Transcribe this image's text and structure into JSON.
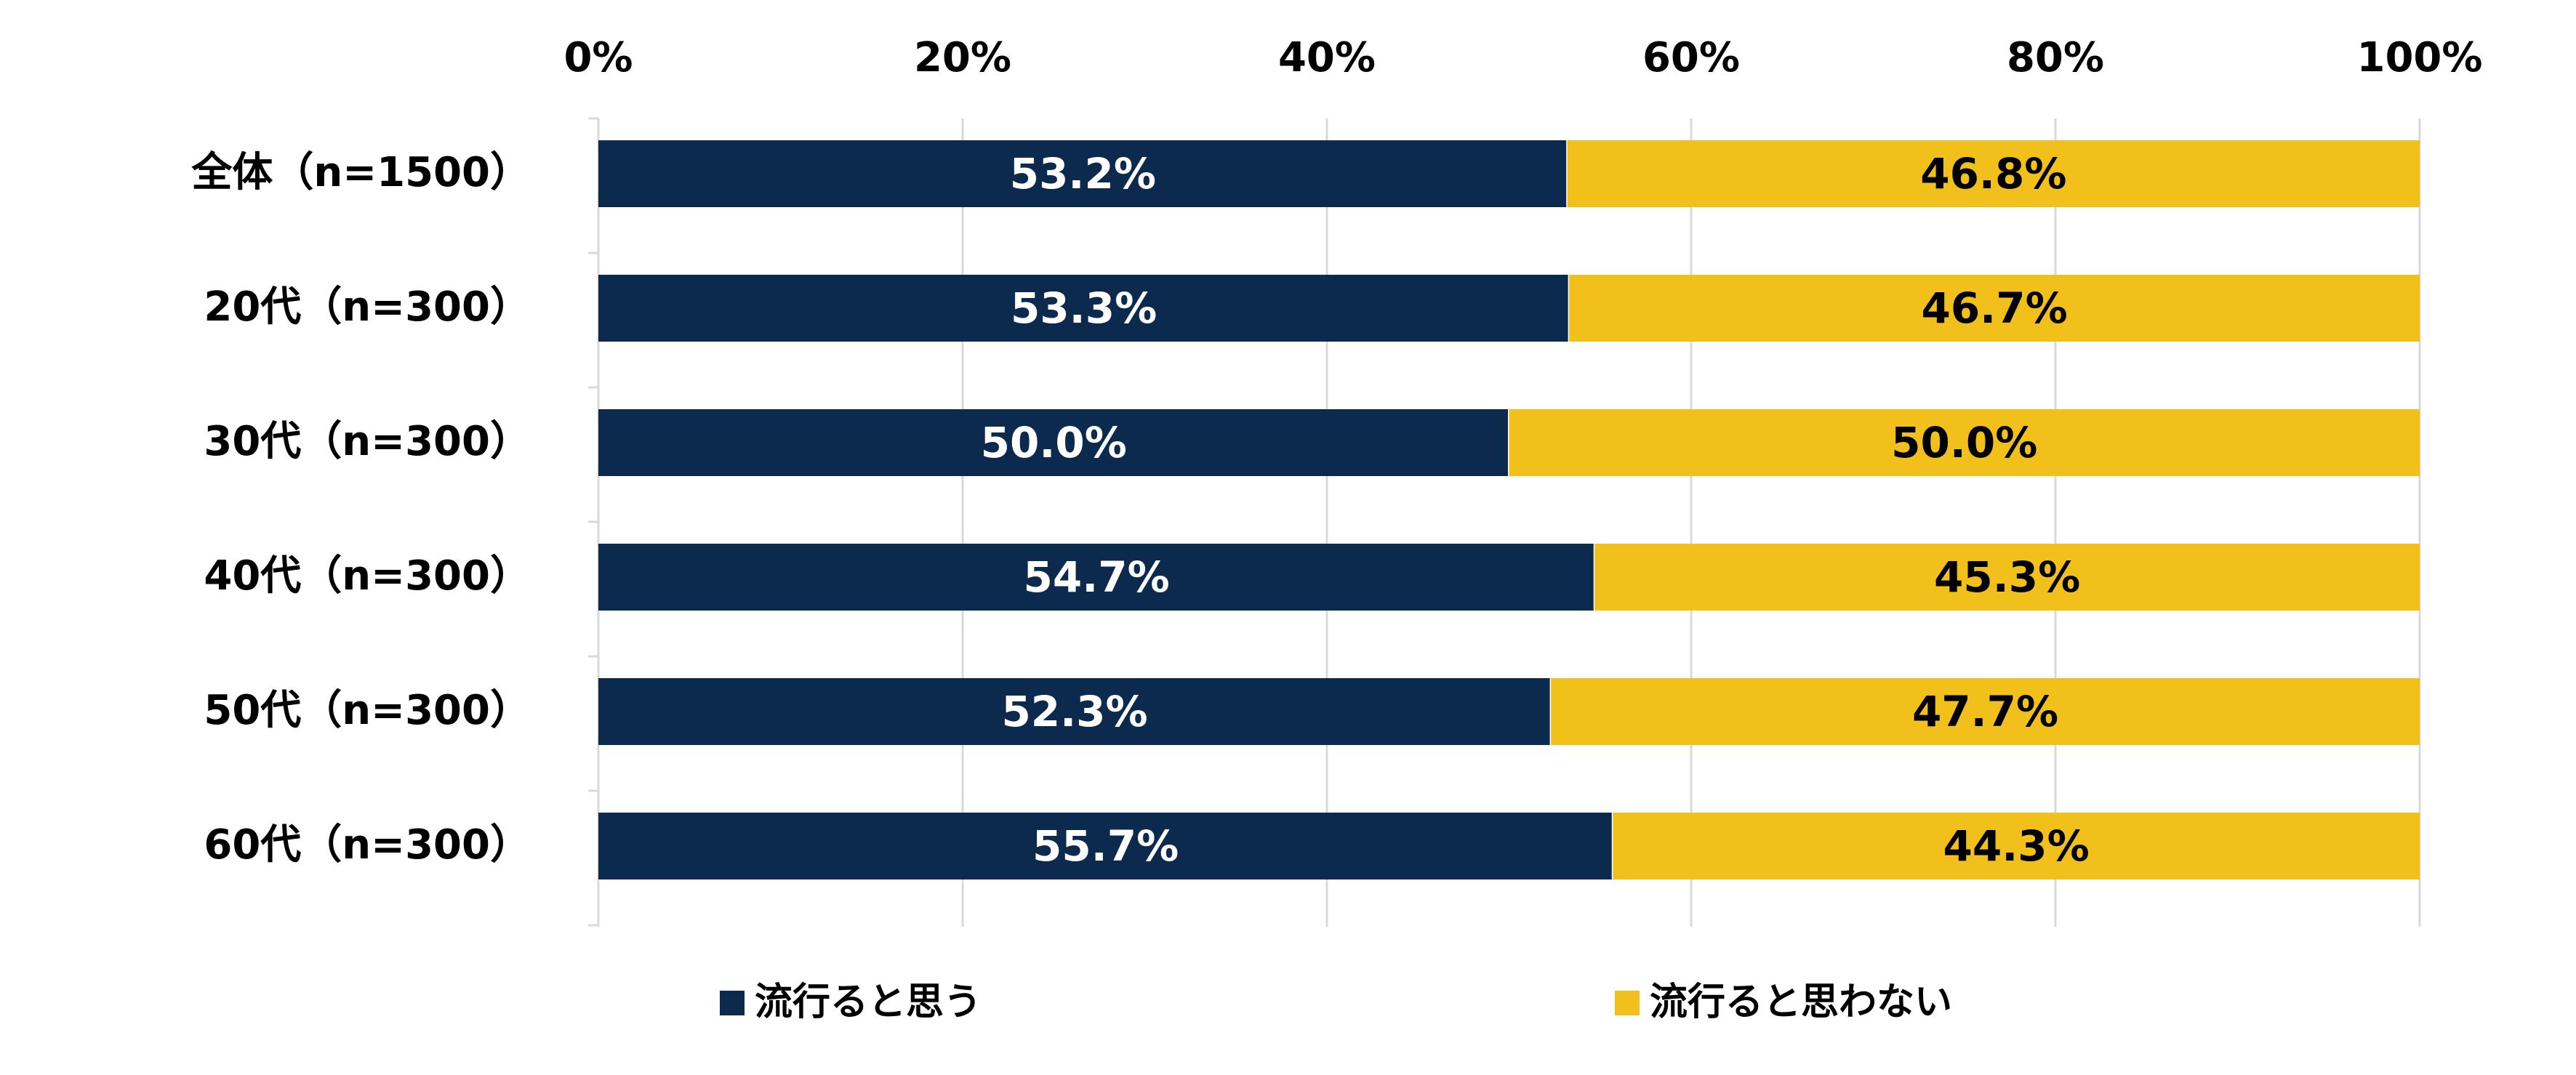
{
  "chart_data": {
    "type": "bar",
    "orientation": "horizontal",
    "stacked": true,
    "percent_stacked": true,
    "categories": [
      "全体（n=1500）",
      "20代（n=300）",
      "30代（n=300）",
      "40代（n=300）",
      "50代（n=300）",
      "60代（n=300）"
    ],
    "series": [
      {
        "name": "流行ると思う",
        "color": "#0b2a4d",
        "label_color": "#ffffff",
        "values": [
          53.2,
          53.3,
          50.0,
          54.7,
          52.3,
          55.7
        ],
        "labels": [
          "53.2%",
          "53.3%",
          "50.0%",
          "54.7%",
          "52.3%",
          "55.7%"
        ]
      },
      {
        "name": "流行ると思わない",
        "color": "#f2c01a",
        "label_color": "#000000",
        "values": [
          46.8,
          46.7,
          50.0,
          45.3,
          47.7,
          44.3
        ],
        "labels": [
          "46.8%",
          "46.7%",
          "50.0%",
          "45.3%",
          "47.7%",
          "44.3%"
        ]
      }
    ],
    "x_ticks": [
      0,
      20,
      40,
      60,
      80,
      100
    ],
    "x_tick_labels": [
      "0%",
      "20%",
      "40%",
      "60%",
      "80%",
      "100%"
    ],
    "xlim": [
      0,
      100
    ],
    "x_axis_position": "top",
    "grid": true,
    "gridline_color": "#d9d9d9",
    "legend_position": "bottom",
    "title": "",
    "xlabel": "",
    "ylabel": ""
  }
}
